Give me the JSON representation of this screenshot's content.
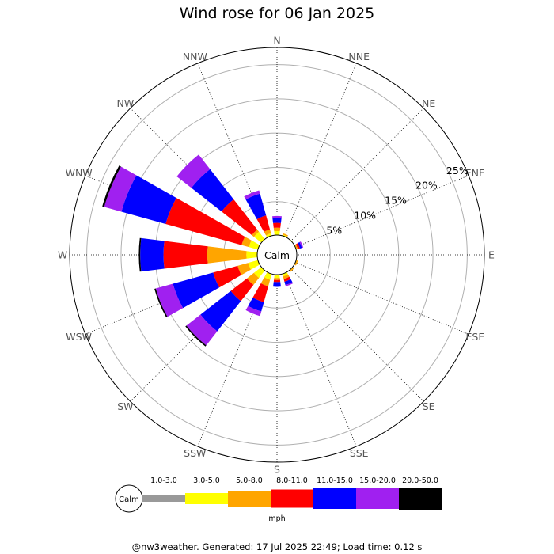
{
  "title": "Wind rose for 06 Jan 2025",
  "footer": "@nw3weather.  Generated: 17 Jul 2025 22:49; Load time: 0.12 s",
  "calm_label": "Calm",
  "units": "mph",
  "chart_data": {
    "type": "wind-rose",
    "title": "Wind rose for 06 Jan 2025",
    "directions": [
      "N",
      "NNE",
      "NE",
      "ENE",
      "E",
      "ESE",
      "SE",
      "SSE",
      "S",
      "SSW",
      "SW",
      "WSW",
      "W",
      "WNW",
      "NW",
      "NNW"
    ],
    "ring_labels": [
      "5%",
      "10%",
      "15%",
      "20%",
      "25%"
    ],
    "ring_values": [
      5,
      10,
      15,
      20,
      25
    ],
    "max_percent": 27.5,
    "bins": [
      {
        "label": "1.0-3.0",
        "color": "#999999"
      },
      {
        "label": "3.0-5.0",
        "color": "#ffff00"
      },
      {
        "label": "5.0-8.0",
        "color": "#ffa500"
      },
      {
        "label": "8.0-11.0",
        "color": "#ff0000"
      },
      {
        "label": "11.0-15.0",
        "color": "#0000ff"
      },
      {
        "label": "15.0-20.0",
        "color": "#a020f0"
      },
      {
        "label": "20.0-50.0",
        "color": "#000000"
      }
    ],
    "sector_percents": [
      {
        "direction": "N",
        "values": [
          0,
          0.7,
          0.5,
          0.7,
          0.7,
          0.3,
          0
        ]
      },
      {
        "direction": "NNE",
        "values": [
          0,
          0.3,
          0.2,
          0,
          0,
          0,
          0
        ]
      },
      {
        "direction": "NE",
        "values": [
          0,
          0.2,
          0,
          0,
          0,
          0,
          0
        ]
      },
      {
        "direction": "ENE",
        "values": [
          0,
          0.2,
          0.2,
          0.3,
          0.3,
          0.2,
          0
        ]
      },
      {
        "direction": "E",
        "values": [
          0,
          0.1,
          0,
          0,
          0,
          0,
          0
        ]
      },
      {
        "direction": "ESE",
        "values": [
          0,
          0.2,
          0.2,
          0,
          0,
          0,
          0
        ]
      },
      {
        "direction": "SE",
        "values": [
          0,
          0.2,
          0.2,
          0,
          0,
          0,
          0
        ]
      },
      {
        "direction": "SSE",
        "values": [
          0,
          0.5,
          0.4,
          0.4,
          0.5,
          0.2,
          0
        ]
      },
      {
        "direction": "S",
        "values": [
          0,
          0.6,
          0.3,
          0.3,
          0.7,
          0,
          0
        ]
      },
      {
        "direction": "SSW",
        "values": [
          0,
          1.0,
          1.0,
          2.4,
          1.4,
          0.7,
          0
        ]
      },
      {
        "direction": "SW",
        "values": [
          0,
          1.5,
          1.3,
          3.0,
          5.6,
          2.6,
          0.2
        ]
      },
      {
        "direction": "WSW",
        "values": [
          0,
          1.6,
          1.6,
          3.7,
          6.1,
          2.6,
          0.2
        ]
      },
      {
        "direction": "W",
        "values": [
          0,
          1.7,
          5.7,
          6.4,
          3.4,
          0,
          0.2
        ]
      },
      {
        "direction": "WNW",
        "values": [
          0,
          1.5,
          1.1,
          11.5,
          6.7,
          2.6,
          0.3
        ]
      },
      {
        "direction": "NW",
        "values": [
          0,
          1.5,
          0.4,
          5.6,
          5.6,
          2.7,
          0
        ]
      },
      {
        "direction": "NNW",
        "values": [
          0,
          0.5,
          0.6,
          2.1,
          3.3,
          0.5,
          0
        ]
      }
    ]
  }
}
